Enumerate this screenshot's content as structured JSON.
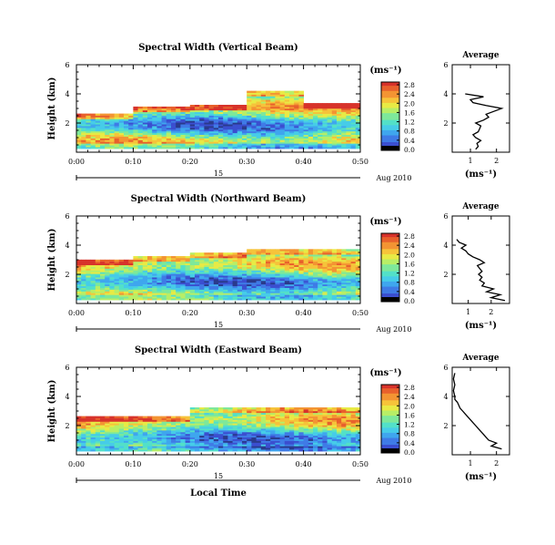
{
  "colors": {
    "scale": [
      "#2a3a8c",
      "#3b4fd0",
      "#3f7be6",
      "#3fa6ee",
      "#46cce8",
      "#53e0c8",
      "#7ee89a",
      "#b8ee66",
      "#e8ea45",
      "#f6c33a",
      "#f39433",
      "#e8602c",
      "#d7332b"
    ],
    "line": "#000000",
    "background": "#ffffff"
  },
  "chart_data": [
    {
      "type": "heatmap",
      "title": "Spectral Width (Vertical Beam)",
      "xlabel": "",
      "ylabel": "Height (km)",
      "x_ticks": [
        "0:00",
        "0:10",
        "0:20",
        "0:30",
        "0:40",
        "0:50"
      ],
      "y_ticks": [
        "2",
        "4",
        "6"
      ],
      "ylim": [
        0,
        6
      ],
      "xlim": [
        0,
        50
      ],
      "date_line": {
        "day": "15",
        "right": "Aug 2010"
      },
      "colorbar": {
        "unit": "(ms⁻¹)",
        "ticks": [
          "0.0",
          "0.4",
          "0.8",
          "1.2",
          "1.6",
          "2.0",
          "2.4",
          "2.8"
        ],
        "range": [
          0,
          2.8
        ]
      },
      "coverage_top_km": [
        2.6,
        3.1,
        3.2,
        4.2,
        3.3
      ],
      "profile": {
        "title": "Average",
        "unit": "(ms⁻¹)",
        "x_ticks": [
          "1",
          "2"
        ],
        "y_ticks": [
          "2",
          "4",
          "6"
        ],
        "xlim": [
          0.3,
          2.5
        ],
        "ylim": [
          0,
          6
        ],
        "points": [
          [
            1.2,
            0.2
          ],
          [
            1.3,
            0.4
          ],
          [
            1.25,
            0.6
          ],
          [
            1.4,
            0.8
          ],
          [
            1.2,
            1.0
          ],
          [
            1.1,
            1.2
          ],
          [
            1.3,
            1.4
          ],
          [
            1.35,
            1.6
          ],
          [
            1.4,
            1.8
          ],
          [
            1.2,
            2.0
          ],
          [
            1.5,
            2.2
          ],
          [
            1.7,
            2.4
          ],
          [
            1.6,
            2.6
          ],
          [
            1.9,
            2.8
          ],
          [
            2.2,
            3.0
          ],
          [
            1.6,
            3.2
          ],
          [
            1.1,
            3.4
          ],
          [
            1.0,
            3.6
          ],
          [
            1.5,
            3.8
          ],
          [
            0.8,
            4.0
          ]
        ]
      }
    },
    {
      "type": "heatmap",
      "title": "Spectral Width (Northward Beam)",
      "xlabel": "",
      "ylabel": "Height (km)",
      "x_ticks": [
        "0:00",
        "0:10",
        "0:20",
        "0:30",
        "0:40",
        "0:50"
      ],
      "y_ticks": [
        "2",
        "4",
        "6"
      ],
      "ylim": [
        0,
        6
      ],
      "xlim": [
        0,
        50
      ],
      "date_line": {
        "day": "15",
        "right": "Aug 2010"
      },
      "colorbar": {
        "unit": "(ms⁻¹)",
        "ticks": [
          "0.0",
          "0.4",
          "0.8",
          "1.2",
          "1.6",
          "2.0",
          "2.4",
          "2.8"
        ],
        "range": [
          0,
          2.8
        ]
      },
      "coverage_top_km": [
        3.0,
        3.2,
        3.4,
        3.7,
        3.7
      ],
      "profile": {
        "title": "Average",
        "unit": "(ms⁻¹)",
        "x_ticks": [
          "1",
          "2"
        ],
        "y_ticks": [
          "2",
          "4",
          "6"
        ],
        "xlim": [
          0.3,
          2.8
        ],
        "ylim": [
          0,
          6
        ],
        "points": [
          [
            2.6,
            0.2
          ],
          [
            2.0,
            0.4
          ],
          [
            2.4,
            0.6
          ],
          [
            1.8,
            0.8
          ],
          [
            2.1,
            1.0
          ],
          [
            1.6,
            1.2
          ],
          [
            1.7,
            1.4
          ],
          [
            1.5,
            1.6
          ],
          [
            1.6,
            1.8
          ],
          [
            1.45,
            2.0
          ],
          [
            1.6,
            2.2
          ],
          [
            1.5,
            2.4
          ],
          [
            1.4,
            2.6
          ],
          [
            1.7,
            2.8
          ],
          [
            1.5,
            3.0
          ],
          [
            1.2,
            3.2
          ],
          [
            1.0,
            3.4
          ],
          [
            0.9,
            3.6
          ],
          [
            0.7,
            3.8
          ],
          [
            0.9,
            4.0
          ],
          [
            0.6,
            4.2
          ],
          [
            0.5,
            4.4
          ]
        ]
      }
    },
    {
      "type": "heatmap",
      "title": "Spectral Width (Eastward Beam)",
      "xlabel": "Local Time",
      "ylabel": "Height (km)",
      "x_ticks": [
        "0:00",
        "0:10",
        "0:20",
        "0:30",
        "0:40",
        "0:50"
      ],
      "y_ticks": [
        "2",
        "4",
        "6"
      ],
      "ylim": [
        0,
        6
      ],
      "xlim": [
        0,
        50
      ],
      "date_line": {
        "day": "15",
        "right": "Aug 2010"
      },
      "colorbar": {
        "unit": "(ms⁻¹)",
        "ticks": [
          "0.0",
          "0.4",
          "0.8",
          "1.2",
          "1.6",
          "2.0",
          "2.4",
          "2.8"
        ],
        "range": [
          0,
          2.8
        ]
      },
      "coverage_top_km": [
        2.6,
        2.6,
        3.2,
        3.2,
        3.2
      ],
      "profile": {
        "title": "Average",
        "unit": "(ms⁻¹)",
        "x_ticks": [
          "1",
          "2"
        ],
        "y_ticks": [
          "2",
          "4",
          "6"
        ],
        "xlim": [
          0.3,
          2.5
        ],
        "ylim": [
          0,
          6
        ],
        "points": [
          [
            2.2,
            0.4
          ],
          [
            1.8,
            0.6
          ],
          [
            2.0,
            0.8
          ],
          [
            1.7,
            1.0
          ],
          [
            1.6,
            1.2
          ],
          [
            1.5,
            1.4
          ],
          [
            1.4,
            1.6
          ],
          [
            1.3,
            1.8
          ],
          [
            1.2,
            2.0
          ],
          [
            1.1,
            2.2
          ],
          [
            1.0,
            2.4
          ],
          [
            0.9,
            2.6
          ],
          [
            0.8,
            2.8
          ],
          [
            0.7,
            3.0
          ],
          [
            0.6,
            3.2
          ],
          [
            0.55,
            3.4
          ],
          [
            0.5,
            3.6
          ],
          [
            0.4,
            3.8
          ],
          [
            0.4,
            4.0
          ],
          [
            0.35,
            4.4
          ],
          [
            0.4,
            4.8
          ],
          [
            0.35,
            5.2
          ],
          [
            0.4,
            5.6
          ]
        ]
      }
    }
  ]
}
